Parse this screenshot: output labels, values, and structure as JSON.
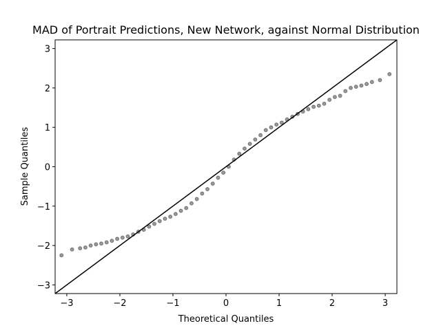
{
  "chart_data": {
    "type": "scatter",
    "title": "MAD of Portrait Predictions, New Network, against Normal Distribution",
    "xlabel": "Theoretical Quantiles",
    "ylabel": "Sample Quantiles",
    "x": [
      -3.1,
      -2.9,
      -2.75,
      -2.65,
      -2.55,
      -2.45,
      -2.35,
      -2.25,
      -2.15,
      -2.05,
      -1.95,
      -1.85,
      -1.75,
      -1.65,
      -1.55,
      -1.45,
      -1.35,
      -1.25,
      -1.15,
      -1.05,
      -0.95,
      -0.85,
      -0.75,
      -0.65,
      -0.55,
      -0.45,
      -0.35,
      -0.25,
      -0.15,
      -0.05,
      0.05,
      0.15,
      0.25,
      0.35,
      0.45,
      0.55,
      0.65,
      0.75,
      0.85,
      0.95,
      1.05,
      1.15,
      1.25,
      1.35,
      1.45,
      1.55,
      1.65,
      1.75,
      1.85,
      1.95,
      2.05,
      2.15,
      2.25,
      2.35,
      2.45,
      2.55,
      2.65,
      2.75,
      2.9,
      3.08
    ],
    "series": [
      {
        "color": "#000000",
        "values": [
          -2.25,
          -2.1,
          -2.07,
          -2.05,
          -2.0,
          -1.97,
          -1.95,
          -1.92,
          -1.88,
          -1.83,
          -1.8,
          -1.77,
          -1.72,
          -1.65,
          -1.6,
          -1.52,
          -1.45,
          -1.38,
          -1.32,
          -1.27,
          -1.2,
          -1.12,
          -1.05,
          -0.93,
          -0.82,
          -0.68,
          -0.57,
          -0.43,
          -0.28,
          -0.15,
          0.0,
          0.18,
          0.33,
          0.46,
          0.58,
          0.69,
          0.8,
          0.93,
          1.0,
          1.07,
          1.12,
          1.2,
          1.27,
          1.34,
          1.4,
          1.46,
          1.52,
          1.55,
          1.6,
          1.7,
          1.77,
          1.8,
          1.92,
          2.0,
          2.03,
          2.06,
          2.1,
          2.15,
          2.2,
          2.35
        ]
      }
    ],
    "reference_line": {
      "color": "#000000",
      "x": [
        -3.22,
        3.22
      ],
      "y": [
        -3.22,
        3.22
      ]
    },
    "xlim": [
      -3.22,
      3.22
    ],
    "ylim": [
      -3.22,
      3.22
    ],
    "xticks": [
      {
        "value": -3,
        "label": "−3"
      },
      {
        "value": -2,
        "label": "−2"
      },
      {
        "value": -1,
        "label": "−1"
      },
      0,
      1,
      2,
      3
    ],
    "yticks": [
      {
        "value": -3,
        "label": "−3"
      },
      {
        "value": -2,
        "label": "−2"
      },
      {
        "value": -1,
        "label": "−1"
      },
      0,
      1,
      2,
      3
    ]
  }
}
